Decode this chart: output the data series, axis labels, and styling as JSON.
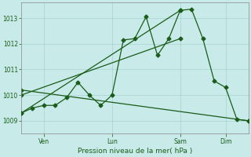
{
  "background_color": "#c8eae8",
  "plot_bg_color": "#c8eae8",
  "grid_color": "#a0ccca",
  "line_color": "#1a5c1a",
  "ylim": [
    1008.5,
    1013.6
  ],
  "yticks": [
    1009,
    1010,
    1011,
    1012,
    1013
  ],
  "xlabel": "Pression niveau de la mer( hPa )",
  "xtick_labels": [
    "Ven",
    "Lun",
    "Sam",
    "Dim"
  ],
  "xtick_positions": [
    12,
    48,
    84,
    108
  ],
  "xlim": [
    0,
    120
  ],
  "main_x": [
    0,
    6,
    12,
    18,
    24,
    30,
    36,
    42,
    48,
    54,
    60,
    66,
    72,
    78,
    84,
    90,
    96,
    102,
    108,
    114,
    120
  ],
  "main_y": [
    1009.3,
    1009.5,
    1009.6,
    1009.6,
    1009.9,
    1010.5,
    1010.0,
    1009.6,
    1010.0,
    1012.15,
    1012.2,
    1013.05,
    1011.55,
    1012.2,
    1013.3,
    1013.35,
    1012.2,
    1010.55,
    1010.3,
    1009.05,
    1009.0
  ],
  "trend1_x": [
    0,
    84
  ],
  "trend1_y": [
    1009.3,
    1013.3
  ],
  "trend2_x": [
    0,
    84
  ],
  "trend2_y": [
    1010.0,
    1012.2
  ],
  "trend3_x": [
    0,
    120
  ],
  "trend3_y": [
    1010.2,
    1009.0
  ]
}
